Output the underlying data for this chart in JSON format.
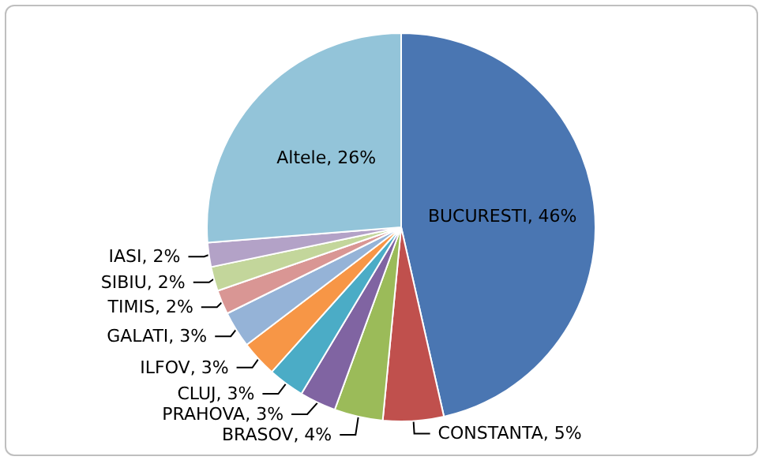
{
  "chart_data": {
    "type": "pie",
    "categories": [
      "BUCURESTI",
      "CONSTANTA",
      "BRASOV",
      "PRAHOVA",
      "CLUJ",
      "ILFOV",
      "GALATI",
      "TIMIS",
      "SIBIU",
      "IASI",
      "Altele"
    ],
    "values": [
      46,
      5,
      4,
      3,
      3,
      3,
      3,
      2,
      2,
      2,
      26
    ],
    "value_labels": [
      "46%",
      "5%",
      "4%",
      "3%",
      "3%",
      "3%",
      "3%",
      "2%",
      "2%",
      "2%",
      "26%"
    ],
    "colors": [
      "#4a76b2",
      "#c0504d",
      "#9bbb59",
      "#8064a2",
      "#4bacc6",
      "#f79646",
      "#95b3d7",
      "#d99694",
      "#c3d69b",
      "#b3a2c7",
      "#93c4d9"
    ]
  }
}
